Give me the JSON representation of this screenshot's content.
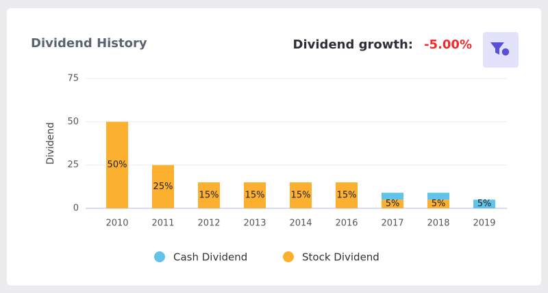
{
  "chart_data": {
    "type": "stacked-bar",
    "title": "Dividend History",
    "growth_label": "Dividend growth:",
    "growth_value": "-5.00%",
    "ylabel": "Dividend",
    "categories": [
      "2010",
      "2011",
      "2012",
      "2013",
      "2014",
      "2016",
      "2017",
      "2018",
      "2019"
    ],
    "series": [
      {
        "name": "Cash Dividend",
        "color": "#62c3ea",
        "values": [
          0,
          0,
          0,
          0,
          0,
          0,
          4,
          4,
          5
        ],
        "value_labels": [
          null,
          null,
          null,
          null,
          null,
          null,
          null,
          null,
          "5%"
        ]
      },
      {
        "name": "Stock Dividend",
        "color": "#fbb02f",
        "values": [
          50,
          25,
          15,
          15,
          15,
          15,
          5,
          5,
          null
        ],
        "value_labels": [
          "50%",
          "25%",
          "15%",
          "15%",
          "15%",
          "15%",
          "5%",
          "5%",
          null
        ]
      }
    ],
    "ylim": [
      0,
      75
    ],
    "yticks": [
      0,
      25,
      50,
      75
    ],
    "grid": true,
    "legend": "bottom"
  }
}
